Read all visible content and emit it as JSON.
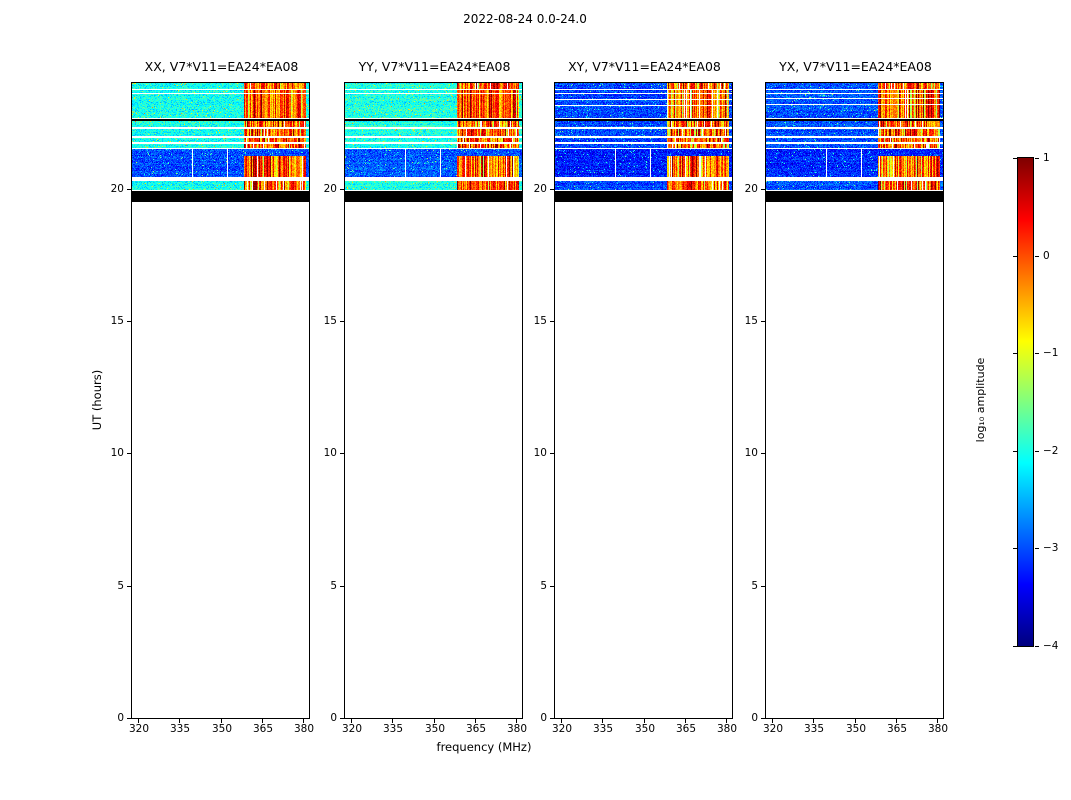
{
  "chart_data": {
    "type": "heatmap",
    "suptitle": "2022-08-24 0.0-24.0",
    "xlabel": "frequency (MHz)",
    "ylabel": "UT (hours)",
    "xlim": [
      318,
      382
    ],
    "ylim": [
      0,
      24
    ],
    "xticks": [
      320,
      335,
      350,
      365,
      380
    ],
    "yticks": [
      0,
      5,
      10,
      15,
      20
    ],
    "colormap": "jet",
    "colorbar": {
      "label": "log₁₀ amplitude",
      "vmin": -4,
      "vmax": 1,
      "ticks": [
        1,
        0,
        -1,
        -2,
        -3,
        -4
      ],
      "tick_labels": [
        "1",
        "0",
        "−1",
        "−2",
        "−3",
        "−4"
      ]
    },
    "panels": [
      {
        "pol": "XX",
        "title": "XX, V7*V11=EA24*EA08",
        "level_bright": -2.05,
        "level_faint": -3.0,
        "rfi_green_prob": 0.04
      },
      {
        "pol": "YY",
        "title": "YY, V7*V11=EA24*EA08",
        "level_bright": -2.0,
        "level_faint": -2.95,
        "rfi_green_prob": 0.04
      },
      {
        "pol": "XY",
        "title": "XY, V7*V11=EA24*EA08",
        "level_bright": -3.05,
        "level_faint": -3.25,
        "rfi_green_prob": 0.12,
        "extra_white_lines": [
          23.4,
          23.18
        ]
      },
      {
        "pol": "YX",
        "title": "YX, V7*V11=EA24*EA08",
        "level_bright": -3.0,
        "level_faint": -3.2,
        "rfi_green_prob": 0.1,
        "extra_white_lines": [
          23.42,
          23.2
        ]
      }
    ],
    "coverage": {
      "ut_data_start": 19.5,
      "ut_data_end": 24.0,
      "flagged_black_ut": [
        19.5,
        19.93
      ],
      "empty_below_ut": 19.5
    },
    "rfi": {
      "freq_range_mhz": [
        358.5,
        381
      ],
      "level_range": [
        -0.8,
        0.6
      ],
      "white_gap_prob": 0.06,
      "green_prob_default": 0.05,
      "dark_red_prob": 0.06
    },
    "strips": [
      {
        "ut": [
          24.0,
          23.78
        ],
        "kind": "bright",
        "rfi": true
      },
      {
        "ut": [
          23.73,
          22.66
        ],
        "kind": "bright",
        "rfi": true,
        "white_lines": [
          23.62
        ]
      },
      {
        "ut": [
          22.62,
          22.55
        ],
        "kind": "black"
      },
      {
        "ut": [
          22.55,
          22.32
        ],
        "kind": "bright",
        "rfi": true
      },
      {
        "ut": [
          22.25,
          21.98
        ],
        "kind": "bright",
        "rfi": true
      },
      {
        "ut": [
          21.91,
          21.77
        ],
        "kind": "bright",
        "rfi": true
      },
      {
        "ut": [
          21.7,
          21.55
        ],
        "kind": "bright",
        "rfi": true
      },
      {
        "ut": [
          21.51,
          20.44
        ],
        "kind": "faint",
        "rfi": true,
        "rfi_ut_max": 21.25,
        "white_cols_mhz": [
          339.8,
          352.3
        ]
      },
      {
        "ut": [
          20.31,
          19.96
        ],
        "kind": "bright",
        "rfi": true
      },
      {
        "ut": [
          19.93,
          19.5
        ],
        "kind": "black"
      }
    ]
  }
}
